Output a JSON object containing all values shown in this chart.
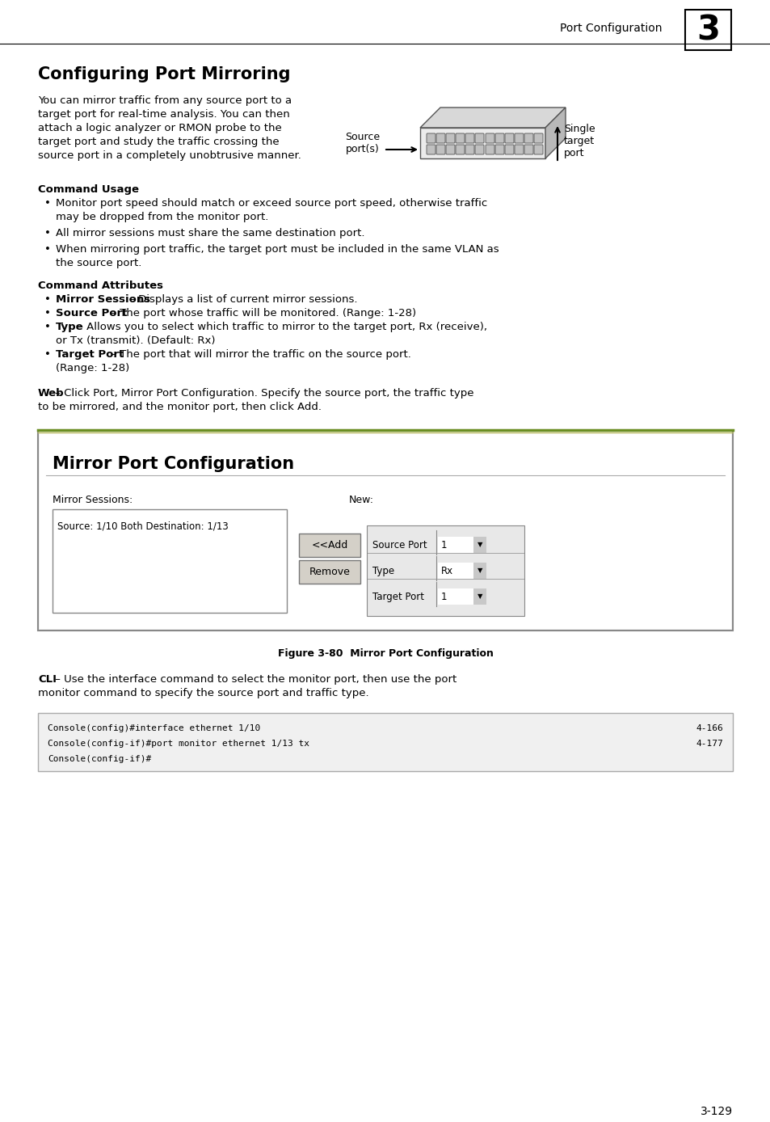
{
  "page_title": "Port Configuration",
  "chapter_num": "3",
  "section_title": "Configuring Port Mirroring",
  "intro_lines": [
    "You can mirror traffic from any source port to a",
    "target port for real-time analysis. You can then",
    "attach a logic analyzer or RMON probe to the",
    "target port and study the traffic crossing the",
    "source port in a completely unobtrusive manner."
  ],
  "source_label": "Source\nport(s)",
  "target_label": "Single\ntarget\nport",
  "command_usage_title": "Command Usage",
  "command_usage_bullets": [
    [
      "Monitor port speed should match or exceed source port speed, otherwise traffic",
      "may be dropped from the monitor port."
    ],
    [
      "All mirror sessions must share the same destination port."
    ],
    [
      "When mirroring port traffic, the target port must be included in the same VLAN as",
      "the source port."
    ]
  ],
  "command_attributes_title": "Command Attributes",
  "command_attributes_bullets": [
    [
      "Mirror Sessions",
      " – Displays a list of current mirror sessions."
    ],
    [
      "Source Port",
      " – The port whose traffic will be monitored. (Range: 1-28)"
    ],
    [
      "Type",
      " – Allows you to select which traffic to mirror to the target port, Rx (receive),",
      "or Tx (transmit). (Default: Rx)"
    ],
    [
      "Target Port",
      " – The port that will mirror the traffic on the source port.",
      "(Range: 1-28)"
    ]
  ],
  "web_bold": "Web",
  "web_normal_line1": " – Click Port, Mirror Port Configuration. Specify the source port, the traffic type",
  "web_normal_line2": "to be mirrored, and the monitor port, then click Add.",
  "figure_box_title": "Mirror Port Configuration",
  "mirror_sessions_label": "Mirror Sessions:",
  "new_label": "New:",
  "session_text": "Source: 1/10 Both Destination: 1/13",
  "add_button": "<<Add",
  "remove_button": "Remove",
  "source_port_label": "Source Port",
  "type_label": "Type",
  "target_port_label": "Target Port",
  "sp_value": "1",
  "type_value": "Rx",
  "tp_value": "1",
  "figure_caption": "Figure 3-80  Mirror Port Configuration",
  "cli_bold": "CLI",
  "cli_normal_line1": " – Use the interface command to select the monitor port, then use the port",
  "cli_normal_line2": "monitor command to specify the source port and traffic type.",
  "cli_lines": [
    [
      "Console(config)#interface ethernet 1/10",
      "4-166"
    ],
    [
      "Console(config-if)#port monitor ethernet 1/13 tx",
      "4-177"
    ],
    [
      "Console(config-if)#",
      ""
    ]
  ],
  "page_number": "3-129",
  "bg_color": "#ffffff",
  "body_font_size": 9.5,
  "title_font_size": 15,
  "header_font_size": 10,
  "code_font_size": 8.0
}
